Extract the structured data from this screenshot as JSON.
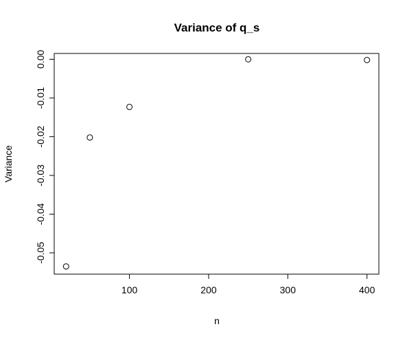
{
  "chart_data": {
    "type": "scatter",
    "title": "Variance of q_s",
    "xlabel": "n",
    "ylabel": "Variance",
    "xlim": [
      5,
      415
    ],
    "ylim": [
      -0.0555,
      0.0015
    ],
    "xticks": [
      100,
      200,
      300,
      400
    ],
    "xtick_labels": [
      "100",
      "200",
      "300",
      "400"
    ],
    "yticks": [
      -0.05,
      -0.04,
      -0.03,
      -0.02,
      -0.01,
      0.0
    ],
    "ytick_labels": [
      "-0.05",
      "-0.04",
      "-0.03",
      "-0.02",
      "-0.01",
      "0.00"
    ],
    "points": [
      {
        "x": 20,
        "y": -0.0535
      },
      {
        "x": 50,
        "y": -0.0202
      },
      {
        "x": 100,
        "y": -0.0123
      },
      {
        "x": 250,
        "y": 0.0
      },
      {
        "x": 400,
        "y": -0.0002
      }
    ],
    "grid": false,
    "legend": "none"
  }
}
